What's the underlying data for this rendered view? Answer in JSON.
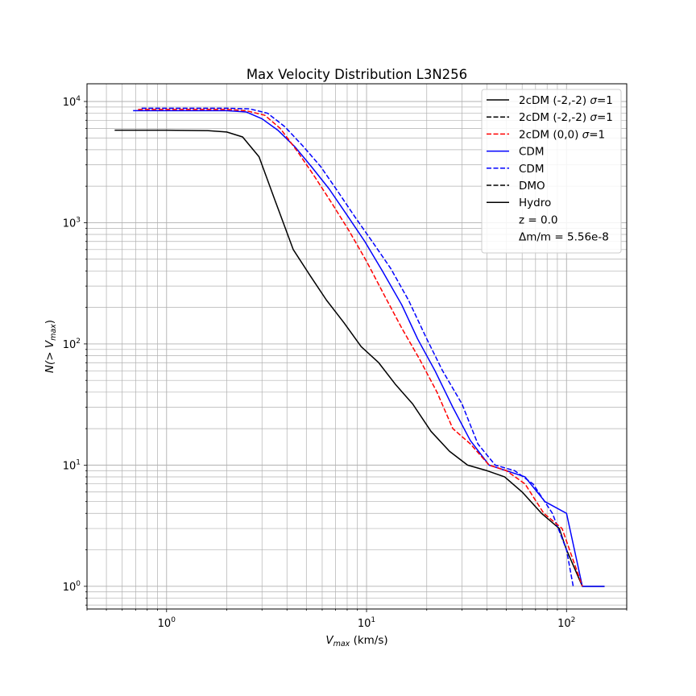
{
  "chart_data": {
    "type": "line",
    "title": "Max Velocity Distribution L3N256",
    "xlabel_main": "V",
    "xlabel_sub": "max",
    "xlabel_unit": " (km/s)",
    "ylabel_main": "N(> V",
    "ylabel_sub": "max",
    "ylabel_end": ")",
    "xscale": "log",
    "yscale": "log",
    "xlim": [
      0.4,
      200
    ],
    "ylim": [
      0.65,
      14000
    ],
    "grid": true,
    "legend_position": "top-right",
    "x_ticks": [
      {
        "value": 1,
        "base": "10",
        "exp": "0"
      },
      {
        "value": 10,
        "base": "10",
        "exp": "1"
      },
      {
        "value": 100,
        "base": "10",
        "exp": "2"
      }
    ],
    "y_ticks": [
      {
        "value": 1,
        "base": "10",
        "exp": "0"
      },
      {
        "value": 10,
        "base": "10",
        "exp": "1"
      },
      {
        "value": 100,
        "base": "10",
        "exp": "2"
      },
      {
        "value": 1000,
        "base": "10",
        "exp": "3"
      },
      {
        "value": 10000,
        "base": "10",
        "exp": "4"
      }
    ],
    "series": [
      {
        "name": "Hydro",
        "color": "#000000",
        "dash": "solid",
        "x": [
          0.55,
          1.0,
          1.6,
          2.0,
          2.4,
          2.9,
          3.5,
          4.3,
          5.2,
          6.3,
          7.7,
          9.4,
          11.5,
          14,
          17,
          21,
          26,
          32,
          40,
          49,
          60,
          75,
          92,
          100,
          120,
          155
        ],
        "y": [
          5800,
          5800,
          5750,
          5600,
          5100,
          3500,
          1500,
          600,
          370,
          230,
          150,
          95,
          70,
          46,
          32,
          19,
          13,
          10,
          9,
          8,
          6,
          4,
          3,
          2,
          1,
          1
        ]
      },
      {
        "name": "CDM",
        "color": "#0000ff",
        "dash": "solid",
        "x": [
          0.68,
          1.0,
          1.6,
          2.0,
          2.5,
          3.0,
          3.6,
          4.4,
          5.3,
          6.5,
          8.0,
          9.8,
          12,
          15,
          18,
          22,
          27,
          33,
          41,
          50,
          62,
          78,
          100,
          120,
          155
        ],
        "y": [
          8400,
          8400,
          8400,
          8400,
          8200,
          7200,
          5800,
          4200,
          2900,
          1900,
          1150,
          700,
          400,
          210,
          110,
          60,
          30,
          16,
          10,
          9,
          8,
          5,
          4,
          1,
          1
        ]
      },
      {
        "name": "CDM",
        "color": "#0000ff",
        "dash": "dashed",
        "x": [
          0.75,
          1.0,
          1.6,
          2.0,
          2.6,
          3.2,
          3.9,
          4.8,
          5.9,
          7.2,
          8.8,
          10.8,
          13.2,
          16.2,
          20,
          24,
          30,
          36,
          44,
          55,
          68,
          85,
          100,
          108
        ],
        "y": [
          8800,
          8800,
          8800,
          8800,
          8700,
          8000,
          6200,
          4300,
          2900,
          1800,
          1100,
          680,
          420,
          230,
          110,
          60,
          32,
          15,
          10,
          9,
          7,
          4,
          2,
          1
        ]
      },
      {
        "name": "2cDM (0,0) σ=1",
        "color": "#ff0000",
        "dash": "dashed",
        "x": [
          0.72,
          1.0,
          1.6,
          2.0,
          2.5,
          3.1,
          3.7,
          4.5,
          5.5,
          6.7,
          8.2,
          10,
          12.3,
          15,
          18.4,
          22.5,
          27,
          33,
          41,
          50,
          62,
          77,
          95,
          120
        ],
        "y": [
          8600,
          8600,
          8600,
          8600,
          8400,
          7700,
          6000,
          3900,
          2400,
          1450,
          850,
          480,
          250,
          135,
          75,
          40,
          20,
          15,
          10,
          9,
          7,
          4,
          3,
          1
        ]
      }
    ],
    "legend": {
      "lines": [
        {
          "label": "2cDM (-2,-2) ",
          "sigma": "σ",
          "tail": "=1",
          "color": "#000000",
          "dash": "solid"
        },
        {
          "label": "2cDM (-2,-2) ",
          "sigma": "σ",
          "tail": "=1",
          "color": "#000000",
          "dash": "dashed"
        },
        {
          "label": "2cDM (0,0) ",
          "sigma": "σ",
          "tail": "=1",
          "color": "#ff0000",
          "dash": "dashed"
        },
        {
          "label": "CDM",
          "sigma": "",
          "tail": "",
          "color": "#0000ff",
          "dash": "solid"
        },
        {
          "label": "CDM",
          "sigma": "",
          "tail": "",
          "color": "#0000ff",
          "dash": "dashed"
        },
        {
          "label": "DMO",
          "sigma": "",
          "tail": "",
          "color": "#000000",
          "dash": "dashed"
        },
        {
          "label": "Hydro",
          "sigma": "",
          "tail": "",
          "color": "#000000",
          "dash": "solid"
        }
      ],
      "notes": [
        "z = 0.0",
        "Δm/m = 5.56e-8"
      ]
    }
  }
}
